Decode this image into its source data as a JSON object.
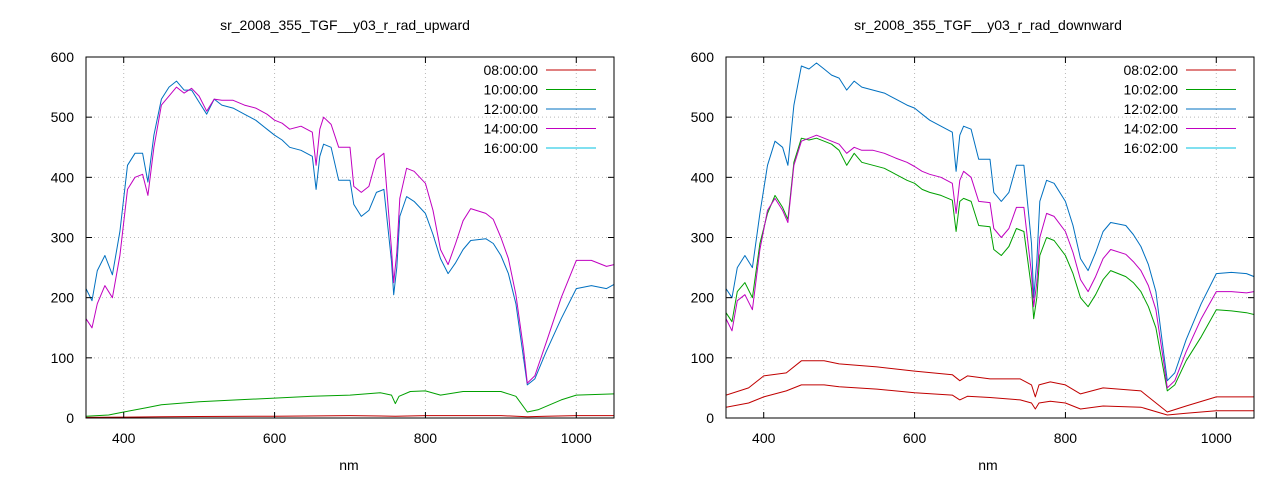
{
  "chart_data": [
    {
      "type": "line",
      "title": "sr_2008_355_TGF__y03_r_rad_upward",
      "xlabel": "nm",
      "ylabel": "",
      "xlim": [
        350,
        1050
      ],
      "ylim": [
        0,
        600
      ],
      "xticks": [
        400,
        600,
        800,
        1000
      ],
      "yticks": [
        0,
        100,
        200,
        300,
        400,
        500,
        600
      ],
      "grid": true,
      "legend_position": "top-right",
      "series": [
        {
          "name": "08:00:00",
          "color": "#c00000",
          "x": [
            350,
            400,
            450,
            500,
            600,
            700,
            760,
            800,
            850,
            900,
            935,
            960,
            1000,
            1050
          ],
          "y": [
            1,
            1.5,
            2,
            2.5,
            3,
            4,
            3,
            4,
            4,
            4,
            2,
            3,
            4,
            4
          ]
        },
        {
          "name": "10:00:00",
          "color": "#00a000",
          "x": [
            350,
            380,
            400,
            430,
            450,
            500,
            550,
            600,
            650,
            700,
            740,
            755,
            760,
            765,
            780,
            800,
            820,
            850,
            900,
            920,
            935,
            950,
            980,
            1000,
            1050
          ],
          "y": [
            3,
            5,
            10,
            17,
            22,
            27,
            30,
            33,
            36,
            38,
            42,
            38,
            24,
            36,
            44,
            45,
            38,
            44,
            44,
            36,
            10,
            14,
            30,
            38,
            40
          ]
        },
        {
          "name": "12:00:00",
          "color": "#0070c0",
          "x": [
            350,
            358,
            365,
            375,
            385,
            395,
            405,
            415,
            425,
            432,
            440,
            450,
            460,
            470,
            480,
            490,
            500,
            510,
            520,
            530,
            545,
            560,
            575,
            590,
            600,
            610,
            620,
            635,
            650,
            655,
            660,
            665,
            675,
            685,
            700,
            705,
            715,
            725,
            735,
            745,
            755,
            758,
            762,
            766,
            775,
            785,
            800,
            810,
            820,
            830,
            840,
            850,
            860,
            880,
            890,
            900,
            910,
            920,
            930,
            935,
            945,
            960,
            980,
            1000,
            1020,
            1040,
            1050
          ],
          "y": [
            215,
            195,
            245,
            270,
            238,
            310,
            420,
            440,
            440,
            392,
            470,
            530,
            550,
            560,
            545,
            545,
            525,
            505,
            530,
            520,
            515,
            505,
            495,
            480,
            470,
            462,
            450,
            445,
            435,
            380,
            435,
            455,
            450,
            395,
            395,
            355,
            335,
            345,
            375,
            380,
            260,
            205,
            250,
            335,
            368,
            360,
            340,
            305,
            265,
            240,
            258,
            280,
            295,
            298,
            290,
            270,
            240,
            190,
            100,
            55,
            65,
            110,
            165,
            215,
            220,
            215,
            222
          ]
        },
        {
          "name": "14:00:00",
          "color": "#c000c0",
          "x": [
            350,
            358,
            365,
            375,
            385,
            395,
            405,
            415,
            425,
            432,
            440,
            450,
            460,
            470,
            480,
            490,
            500,
            510,
            520,
            530,
            545,
            560,
            575,
            590,
            600,
            610,
            620,
            635,
            650,
            655,
            660,
            665,
            675,
            685,
            700,
            705,
            715,
            725,
            735,
            745,
            755,
            758,
            762,
            766,
            775,
            785,
            800,
            810,
            820,
            830,
            840,
            850,
            860,
            880,
            890,
            900,
            910,
            920,
            930,
            935,
            945,
            960,
            980,
            1000,
            1020,
            1040,
            1050
          ],
          "y": [
            165,
            150,
            190,
            220,
            200,
            270,
            380,
            400,
            405,
            370,
            450,
            520,
            535,
            550,
            540,
            548,
            535,
            510,
            530,
            528,
            528,
            520,
            515,
            505,
            495,
            490,
            480,
            485,
            475,
            420,
            480,
            500,
            488,
            450,
            450,
            385,
            375,
            385,
            430,
            440,
            280,
            225,
            275,
            365,
            415,
            410,
            390,
            345,
            280,
            255,
            290,
            328,
            348,
            340,
            330,
            300,
            265,
            205,
            115,
            58,
            70,
            125,
            200,
            262,
            262,
            252,
            255
          ]
        },
        {
          "name": "16:00:00",
          "color": "#00c0e0",
          "x": [
            350,
            1050
          ],
          "y": [
            0,
            0
          ]
        }
      ]
    },
    {
      "type": "line",
      "title": "sr_2008_355_TGF__y03_r_rad_downward",
      "xlabel": "nm",
      "ylabel": "",
      "xlim": [
        350,
        1050
      ],
      "ylim": [
        0,
        600
      ],
      "xticks": [
        400,
        600,
        800,
        1000
      ],
      "yticks": [
        0,
        100,
        200,
        300,
        400,
        500,
        600
      ],
      "grid": true,
      "legend_position": "top-right",
      "series": [
        {
          "name": "08:02:00",
          "color": "#c00000",
          "x": [
            350,
            380,
            400,
            430,
            450,
            480,
            500,
            550,
            600,
            650,
            660,
            670,
            700,
            740,
            755,
            760,
            765,
            780,
            800,
            820,
            850,
            900,
            935,
            960,
            1000,
            1050
          ],
          "y": [
            38,
            50,
            70,
            75,
            95,
            95,
            90,
            85,
            78,
            72,
            62,
            70,
            65,
            65,
            55,
            35,
            55,
            60,
            55,
            40,
            50,
            45,
            10,
            20,
            35,
            35
          ]
        },
        {
          "name": "10:02:00",
          "color": "#00a000",
          "x": [
            350,
            358,
            365,
            375,
            385,
            395,
            405,
            415,
            425,
            432,
            440,
            450,
            460,
            470,
            480,
            490,
            500,
            510,
            520,
            530,
            545,
            560,
            575,
            590,
            600,
            610,
            620,
            635,
            650,
            655,
            660,
            665,
            675,
            685,
            700,
            705,
            715,
            725,
            735,
            745,
            755,
            758,
            762,
            766,
            775,
            785,
            800,
            810,
            820,
            830,
            840,
            850,
            860,
            880,
            890,
            900,
            910,
            920,
            930,
            935,
            945,
            960,
            980,
            1000,
            1020,
            1040,
            1050
          ],
          "y": [
            175,
            160,
            210,
            225,
            200,
            290,
            340,
            370,
            350,
            330,
            425,
            465,
            462,
            465,
            460,
            455,
            445,
            420,
            440,
            425,
            420,
            415,
            405,
            395,
            390,
            380,
            375,
            370,
            362,
            310,
            360,
            365,
            360,
            320,
            318,
            280,
            270,
            285,
            315,
            310,
            215,
            165,
            200,
            270,
            300,
            295,
            270,
            240,
            200,
            185,
            205,
            230,
            245,
            235,
            225,
            210,
            185,
            150,
            80,
            45,
            55,
            95,
            135,
            180,
            178,
            175,
            172
          ]
        },
        {
          "name": "12:02:00",
          "color": "#0070c0",
          "x": [
            350,
            358,
            365,
            375,
            385,
            395,
            405,
            415,
            425,
            432,
            440,
            450,
            460,
            470,
            480,
            490,
            500,
            510,
            520,
            530,
            545,
            560,
            575,
            590,
            600,
            610,
            620,
            635,
            650,
            655,
            660,
            665,
            675,
            685,
            700,
            705,
            715,
            725,
            735,
            745,
            755,
            758,
            762,
            766,
            775,
            785,
            800,
            810,
            820,
            830,
            840,
            850,
            860,
            880,
            890,
            900,
            910,
            920,
            930,
            935,
            945,
            960,
            980,
            1000,
            1020,
            1040,
            1050
          ],
          "y": [
            215,
            200,
            250,
            270,
            250,
            340,
            420,
            460,
            450,
            420,
            520,
            585,
            580,
            590,
            580,
            570,
            565,
            545,
            560,
            550,
            545,
            540,
            530,
            520,
            515,
            505,
            495,
            485,
            475,
            410,
            470,
            485,
            480,
            430,
            430,
            375,
            360,
            375,
            420,
            420,
            290,
            200,
            260,
            360,
            395,
            390,
            360,
            320,
            265,
            245,
            275,
            310,
            325,
            320,
            305,
            285,
            255,
            210,
            110,
            62,
            75,
            130,
            190,
            240,
            242,
            240,
            235
          ]
        },
        {
          "name": "14:02:00",
          "color": "#c000c0",
          "x": [
            350,
            358,
            365,
            375,
            385,
            395,
            405,
            415,
            425,
            432,
            440,
            450,
            460,
            470,
            480,
            490,
            500,
            510,
            520,
            530,
            545,
            560,
            575,
            590,
            600,
            610,
            620,
            635,
            650,
            655,
            660,
            665,
            675,
            685,
            700,
            705,
            715,
            725,
            735,
            745,
            755,
            758,
            762,
            766,
            775,
            785,
            800,
            810,
            820,
            830,
            840,
            850,
            860,
            880,
            890,
            900,
            910,
            920,
            930,
            935,
            945,
            960,
            980,
            1000,
            1020,
            1040,
            1050
          ],
          "y": [
            165,
            145,
            195,
            205,
            180,
            280,
            345,
            365,
            345,
            325,
            420,
            460,
            465,
            470,
            465,
            460,
            455,
            440,
            450,
            445,
            445,
            440,
            432,
            425,
            418,
            410,
            405,
            400,
            390,
            340,
            395,
            410,
            400,
            360,
            358,
            315,
            300,
            315,
            350,
            350,
            240,
            185,
            225,
            300,
            340,
            335,
            310,
            275,
            230,
            210,
            235,
            265,
            280,
            272,
            260,
            245,
            220,
            180,
            95,
            50,
            62,
            110,
            165,
            210,
            210,
            208,
            210
          ]
        },
        {
          "name": "16:02:00",
          "color": "#00c0e0",
          "x": [
            350,
            1050
          ],
          "y": [
            0,
            0
          ]
        },
        {
          "name": "",
          "color": "#c00000",
          "x": [
            350,
            380,
            400,
            430,
            450,
            480,
            500,
            550,
            600,
            650,
            660,
            670,
            700,
            740,
            755,
            760,
            765,
            780,
            800,
            820,
            850,
            900,
            935,
            960,
            1000,
            1050
          ],
          "y": [
            18,
            25,
            35,
            45,
            55,
            55,
            52,
            48,
            42,
            38,
            30,
            36,
            34,
            30,
            25,
            15,
            25,
            28,
            25,
            15,
            20,
            18,
            5,
            8,
            12,
            12
          ]
        }
      ]
    }
  ]
}
